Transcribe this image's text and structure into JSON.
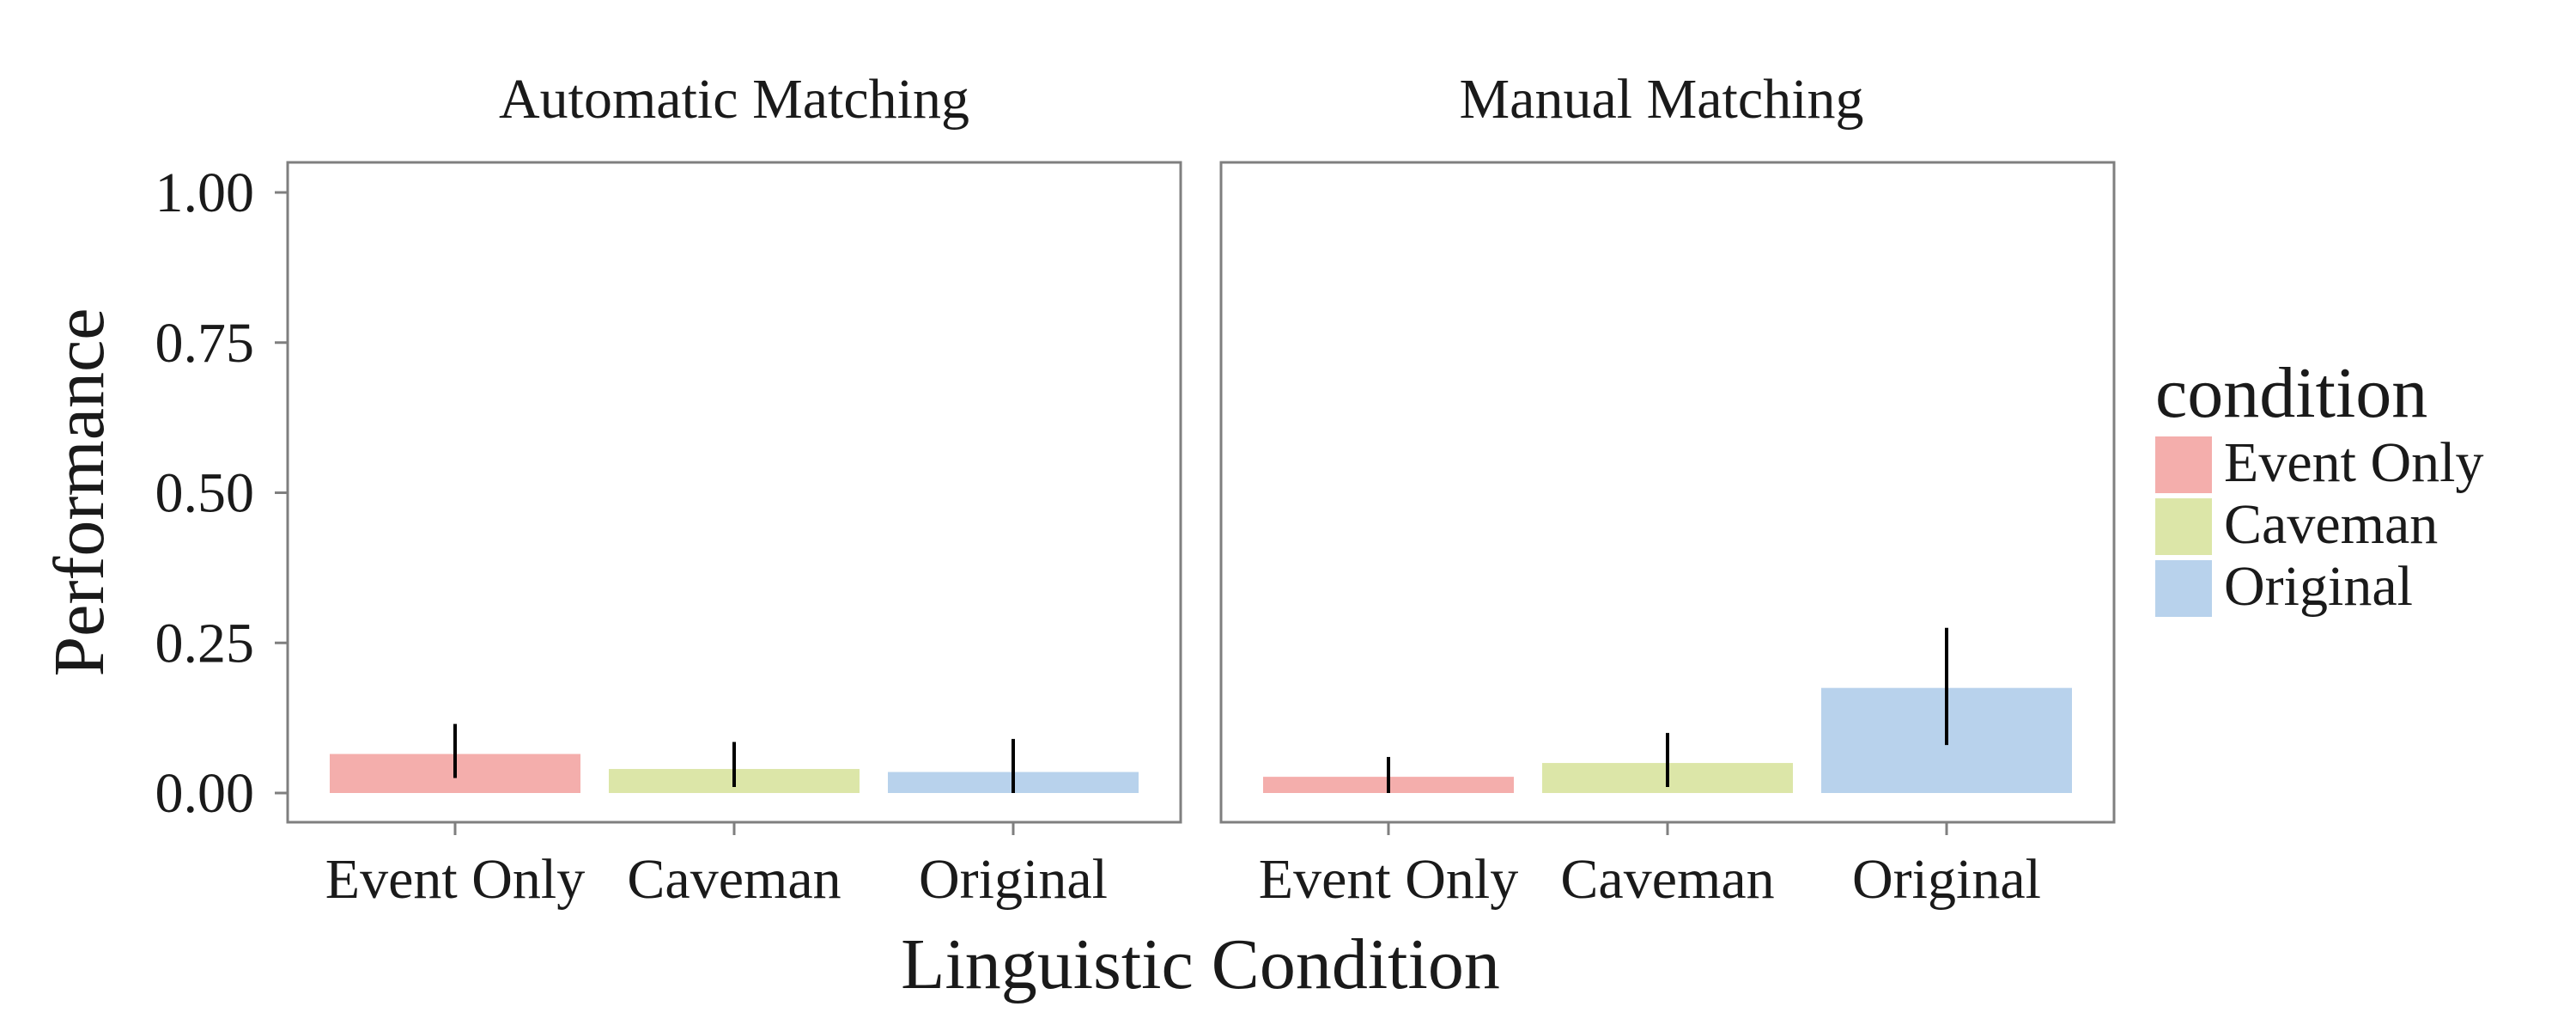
{
  "chart_data": {
    "type": "bar",
    "xlabel": "Linguistic Condition",
    "ylabel": "Performance",
    "ylim": [
      0,
      1
    ],
    "yticks": [
      0,
      0.25,
      0.5,
      0.75,
      1
    ],
    "ytick_labels": [
      "0.00",
      "0.25",
      "0.50",
      "0.75",
      "1.00"
    ],
    "grid": false,
    "legend": {
      "title": "condition",
      "position": "right",
      "entries": [
        {
          "label": "Event Only",
          "color": "#F4AEAC"
        },
        {
          "label": "Caveman",
          "color": "#DCE6A8"
        },
        {
          "label": "Original",
          "color": "#B8D2EC"
        }
      ]
    },
    "panels": [
      {
        "title": "Automatic Matching",
        "categories": [
          "Event Only",
          "Caveman",
          "Original"
        ],
        "values": [
          0.065,
          0.04,
          0.035
        ],
        "err_low": [
          0.025,
          0.01,
          0.0
        ],
        "err_high": [
          0.115,
          0.085,
          0.09
        ]
      },
      {
        "title": "Manual Matching",
        "categories": [
          "Event Only",
          "Caveman",
          "Original"
        ],
        "values": [
          0.027,
          0.05,
          0.175
        ],
        "err_low": [
          0.0,
          0.01,
          0.08
        ],
        "err_high": [
          0.06,
          0.1,
          0.275
        ]
      }
    ]
  }
}
